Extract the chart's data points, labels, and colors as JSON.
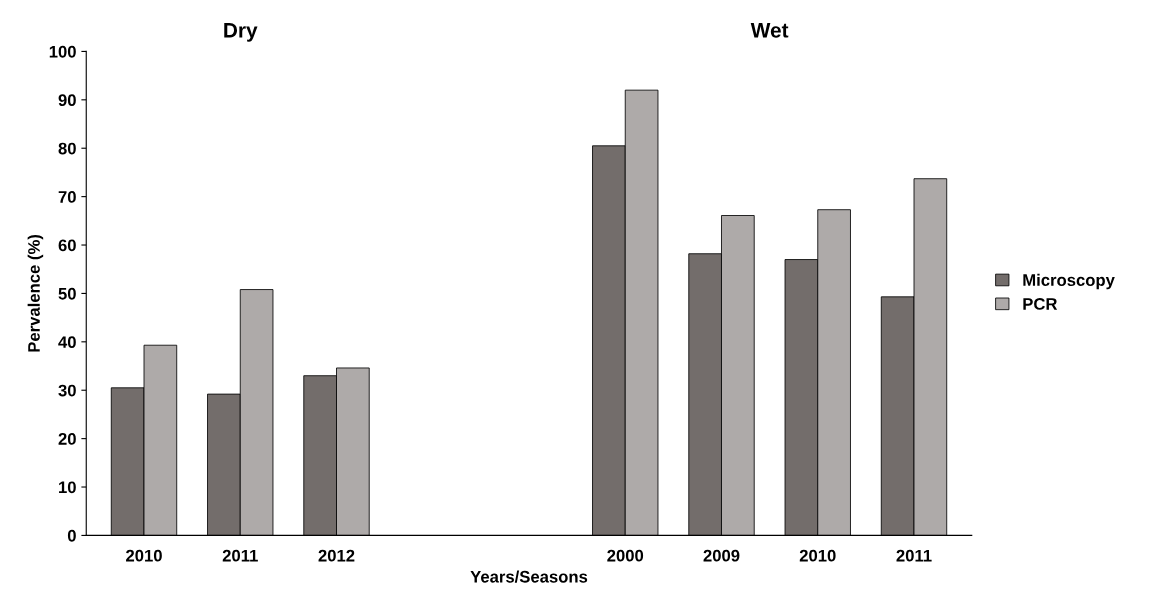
{
  "chart_data": {
    "type": "bar",
    "xlabel": "Years/Seasons",
    "ylabel": "Pervalence (%)",
    "categories": [
      "2010",
      "2011",
      "2012",
      null,
      null,
      "2000",
      "2009",
      "2010",
      "2011"
    ],
    "series": [
      {
        "name": "Microscopy",
        "color": "#736d6b",
        "values": [
          30.5,
          29.2,
          33.0,
          null,
          null,
          80.5,
          58.2,
          57.0,
          49.3
        ]
      },
      {
        "name": "PCR",
        "color": "#aeaaa9",
        "values": [
          39.3,
          50.8,
          34.6,
          null,
          null,
          92.0,
          66.1,
          67.3,
          73.7
        ]
      }
    ],
    "annotations": [
      "Dry",
      "Wet"
    ],
    "ylim": [
      0,
      100
    ],
    "yticks": [
      0,
      10,
      20,
      30,
      40,
      50,
      60,
      70,
      80,
      90,
      100
    ],
    "grid": false,
    "legend": "right"
  }
}
